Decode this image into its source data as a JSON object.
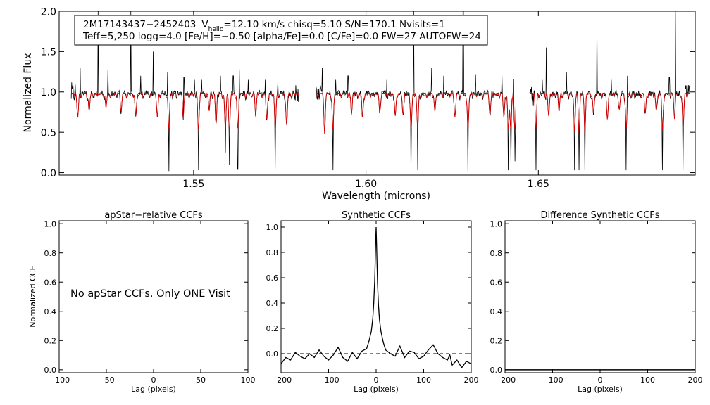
{
  "chart_data": [
    {
      "type": "line",
      "id": "spectrum",
      "info_line1_id": "2M17143437−2452403",
      "info_line1_v": "V",
      "info_line1_v_sub": "helio",
      "info_line1_rest": "=12.10 km/s  chisq=5.10  S/N=170.1  Nvisits=1",
      "info_line2": "Teff=5,250 logg=4.0 [Fe/H]=−0.50 [alpha/Fe]=0.0 [C/Fe]=0.0 FW=27 AUTOFW=24",
      "xlabel": "Wavelength (microns)",
      "ylabel": "Normalized Flux",
      "xlim": [
        1.511,
        1.6955
      ],
      "ylim": [
        -0.03,
        2.0
      ],
      "xticks": [
        {
          "v": 1.55,
          "label": "1.55"
        },
        {
          "v": 1.6,
          "label": "1.60"
        },
        {
          "v": 1.65,
          "label": "1.65"
        }
      ],
      "yticks": [
        {
          "v": 0.0,
          "label": "0.0"
        },
        {
          "v": 0.5,
          "label": "0.5"
        },
        {
          "v": 1.0,
          "label": "1.0"
        },
        {
          "v": 1.5,
          "label": "1.5"
        },
        {
          "v": 2.0,
          "label": "2.0"
        }
      ],
      "chips": [
        [
          1.5145,
          1.5805
        ],
        [
          1.5855,
          1.6435
        ],
        [
          1.6475,
          1.694
        ]
      ],
      "series": [
        {
          "key": "observed",
          "color": "#000000",
          "role": "observed spectrum"
        },
        {
          "key": "model",
          "color": "#dd0000",
          "role": "synthetic model"
        }
      ],
      "absorption_lines": [
        {
          "x": 1.5164,
          "depth": 0.3
        },
        {
          "x": 1.5197,
          "depth": 0.22
        },
        {
          "x": 1.5246,
          "depth": 0.18
        },
        {
          "x": 1.529,
          "depth": 0.2
        },
        {
          "x": 1.5332,
          "depth": 0.28
        },
        {
          "x": 1.5395,
          "depth": 0.3
        },
        {
          "x": 1.5428,
          "depth": 0.98
        },
        {
          "x": 1.547,
          "depth": 0.25
        },
        {
          "x": 1.5514,
          "depth": 0.97
        },
        {
          "x": 1.5545,
          "depth": 0.22
        },
        {
          "x": 1.5565,
          "depth": 0.35
        },
        {
          "x": 1.5592,
          "depth": 0.75
        },
        {
          "x": 1.5604,
          "depth": 0.9
        },
        {
          "x": 1.5628,
          "depth": 0.96
        },
        {
          "x": 1.568,
          "depth": 0.25
        },
        {
          "x": 1.5712,
          "depth": 0.32
        },
        {
          "x": 1.5737,
          "depth": 0.97
        },
        {
          "x": 1.577,
          "depth": 0.4
        },
        {
          "x": 1.588,
          "depth": 0.45
        },
        {
          "x": 1.5904,
          "depth": 0.97
        },
        {
          "x": 1.5958,
          "depth": 0.25
        },
        {
          "x": 1.599,
          "depth": 0.3
        },
        {
          "x": 1.604,
          "depth": 0.22
        },
        {
          "x": 1.6085,
          "depth": 0.28
        },
        {
          "x": 1.6107,
          "depth": 0.25
        },
        {
          "x": 1.6131,
          "depth": 0.98
        },
        {
          "x": 1.615,
          "depth": 0.97
        },
        {
          "x": 1.62,
          "depth": 0.22
        },
        {
          "x": 1.6258,
          "depth": 0.3
        },
        {
          "x": 1.6296,
          "depth": 0.98
        },
        {
          "x": 1.636,
          "depth": 0.25
        },
        {
          "x": 1.64,
          "depth": 0.3
        },
        {
          "x": 1.6413,
          "depth": 0.97
        },
        {
          "x": 1.642,
          "depth": 0.97
        },
        {
          "x": 1.6432,
          "depth": 0.97
        },
        {
          "x": 1.6493,
          "depth": 0.97
        },
        {
          "x": 1.653,
          "depth": 0.28
        },
        {
          "x": 1.656,
          "depth": 0.22
        },
        {
          "x": 1.6605,
          "depth": 0.97
        },
        {
          "x": 1.6618,
          "depth": 0.97
        },
        {
          "x": 1.6635,
          "depth": 0.97
        },
        {
          "x": 1.666,
          "depth": 0.25
        },
        {
          "x": 1.67,
          "depth": 0.3
        },
        {
          "x": 1.6735,
          "depth": 0.2
        },
        {
          "x": 1.6755,
          "depth": 0.97
        },
        {
          "x": 1.681,
          "depth": 0.25
        },
        {
          "x": 1.6842,
          "depth": 0.22
        },
        {
          "x": 1.686,
          "depth": 0.97
        },
        {
          "x": 1.6895,
          "depth": 0.28
        },
        {
          "x": 1.692,
          "depth": 0.97
        }
      ],
      "emission_spikes": [
        {
          "x": 1.5171,
          "height": 1.3
        },
        {
          "x": 1.5223,
          "height": 2.0
        },
        {
          "x": 1.5252,
          "height": 1.28
        },
        {
          "x": 1.5318,
          "height": 2.0
        },
        {
          "x": 1.5347,
          "height": 1.2
        },
        {
          "x": 1.5383,
          "height": 1.5
        },
        {
          "x": 1.5425,
          "height": 1.25
        },
        {
          "x": 1.5472,
          "height": 1.18
        },
        {
          "x": 1.5502,
          "height": 1.15
        },
        {
          "x": 1.5523,
          "height": 1.15
        },
        {
          "x": 1.5578,
          "height": 1.2
        },
        {
          "x": 1.5615,
          "height": 1.2
        },
        {
          "x": 1.5632,
          "height": 1.28
        },
        {
          "x": 1.5658,
          "height": 1.15
        },
        {
          "x": 1.5708,
          "height": 1.15
        },
        {
          "x": 1.5744,
          "height": 1.12
        },
        {
          "x": 1.5873,
          "height": 1.3
        },
        {
          "x": 1.5912,
          "height": 1.15
        },
        {
          "x": 1.5948,
          "height": 1.2
        },
        {
          "x": 1.606,
          "height": 1.15
        },
        {
          "x": 1.6138,
          "height": 2.0
        },
        {
          "x": 1.619,
          "height": 1.3
        },
        {
          "x": 1.6225,
          "height": 1.2
        },
        {
          "x": 1.6282,
          "height": 2.0
        },
        {
          "x": 1.6318,
          "height": 1.22
        },
        {
          "x": 1.6395,
          "height": 1.2
        },
        {
          "x": 1.6428,
          "height": 1.15
        },
        {
          "x": 1.6511,
          "height": 1.15
        },
        {
          "x": 1.6523,
          "height": 1.55
        },
        {
          "x": 1.6582,
          "height": 1.25
        },
        {
          "x": 1.667,
          "height": 1.8
        },
        {
          "x": 1.6712,
          "height": 1.15
        },
        {
          "x": 1.6758,
          "height": 1.2
        },
        {
          "x": 1.688,
          "height": 1.18
        },
        {
          "x": 1.6897,
          "height": 2.0
        }
      ]
    },
    {
      "type": "line",
      "id": "apstar-ccf",
      "title": "apStar−relative CCFs",
      "xlabel": "Lag (pixels)",
      "ylabel": "Normalized CCF",
      "xlim": [
        -100,
        100
      ],
      "ylim": [
        -0.02,
        1.02
      ],
      "xticks": [
        {
          "v": -100,
          "label": "−100"
        },
        {
          "v": -50,
          "label": "−50"
        },
        {
          "v": 0,
          "label": "0"
        },
        {
          "v": 50,
          "label": "50"
        },
        {
          "v": 100,
          "label": "100"
        }
      ],
      "yticks": [
        {
          "v": 0.0,
          "label": "0.0"
        },
        {
          "v": 0.2,
          "label": "0.2"
        },
        {
          "v": 0.4,
          "label": "0.4"
        },
        {
          "v": 0.6,
          "label": "0.6"
        },
        {
          "v": 0.8,
          "label": "0.8"
        },
        {
          "v": 1.0,
          "label": "1.0"
        }
      ],
      "message": "No apStar CCFs.  Only ONE Visit",
      "series": []
    },
    {
      "type": "line",
      "id": "synthetic-ccf",
      "title": "Synthetic CCFs",
      "xlabel": "Lag (pixels)",
      "xlim": [
        -200,
        200
      ],
      "ylim": [
        -0.15,
        1.05
      ],
      "xticks": [
        {
          "v": -200,
          "label": "−200"
        },
        {
          "v": -100,
          "label": "−100"
        },
        {
          "v": 0,
          "label": "0"
        },
        {
          "v": 100,
          "label": "100"
        },
        {
          "v": 200,
          "label": "200"
        }
      ],
      "yticks": [
        {
          "v": 0.0,
          "label": "0.0"
        },
        {
          "v": 0.2,
          "label": "0.2"
        },
        {
          "v": 0.4,
          "label": "0.4"
        },
        {
          "v": 0.6,
          "label": "0.6"
        },
        {
          "v": 0.8,
          "label": "0.8"
        },
        {
          "v": 1.0,
          "label": "1.0"
        }
      ],
      "zero_line": 0.0,
      "series": [
        {
          "key": "ccf",
          "color": "#000000",
          "x": [
            -200,
            -190,
            -180,
            -170,
            -160,
            -150,
            -140,
            -130,
            -120,
            -110,
            -100,
            -90,
            -80,
            -70,
            -60,
            -50,
            -40,
            -30,
            -20,
            -15,
            -10,
            -7,
            -5,
            -3,
            -2,
            -1,
            0,
            1,
            2,
            3,
            5,
            7,
            10,
            15,
            20,
            30,
            40,
            50,
            60,
            70,
            80,
            90,
            100,
            110,
            120,
            130,
            140,
            150,
            155,
            160,
            170,
            180,
            190,
            200
          ],
          "y": [
            -0.08,
            -0.03,
            -0.05,
            0.01,
            -0.02,
            -0.04,
            0.0,
            -0.03,
            0.03,
            -0.02,
            -0.05,
            -0.01,
            0.05,
            -0.03,
            -0.06,
            0.01,
            -0.04,
            0.02,
            0.04,
            0.1,
            0.18,
            0.28,
            0.4,
            0.58,
            0.72,
            0.88,
            1.0,
            0.86,
            0.7,
            0.55,
            0.38,
            0.27,
            0.18,
            0.09,
            0.03,
            0.0,
            -0.02,
            0.06,
            -0.03,
            0.02,
            0.01,
            -0.04,
            -0.02,
            0.03,
            0.07,
            0.0,
            -0.03,
            -0.05,
            -0.01,
            -0.09,
            -0.05,
            -0.11,
            -0.06,
            -0.08
          ]
        }
      ]
    },
    {
      "type": "line",
      "id": "difference-ccf",
      "title": "Difference Synthetic CCFs",
      "xlabel": "Lag (pixels)",
      "xlim": [
        -200,
        200
      ],
      "ylim": [
        -0.02,
        1.02
      ],
      "xticks": [
        {
          "v": -200,
          "label": "−200"
        },
        {
          "v": -100,
          "label": "−100"
        },
        {
          "v": 0,
          "label": "0"
        },
        {
          "v": 100,
          "label": "100"
        },
        {
          "v": 200,
          "label": "200"
        }
      ],
      "yticks": [
        {
          "v": 0.0,
          "label": "0.0"
        },
        {
          "v": 0.2,
          "label": "0.2"
        },
        {
          "v": 0.4,
          "label": "0.4"
        },
        {
          "v": 0.6,
          "label": "0.6"
        },
        {
          "v": 0.8,
          "label": "0.8"
        },
        {
          "v": 1.0,
          "label": "1.0"
        }
      ],
      "series": [
        {
          "key": "flat",
          "color": "#000000",
          "x": [
            -200,
            200
          ],
          "y": [
            0.0,
            0.0
          ]
        }
      ]
    }
  ]
}
